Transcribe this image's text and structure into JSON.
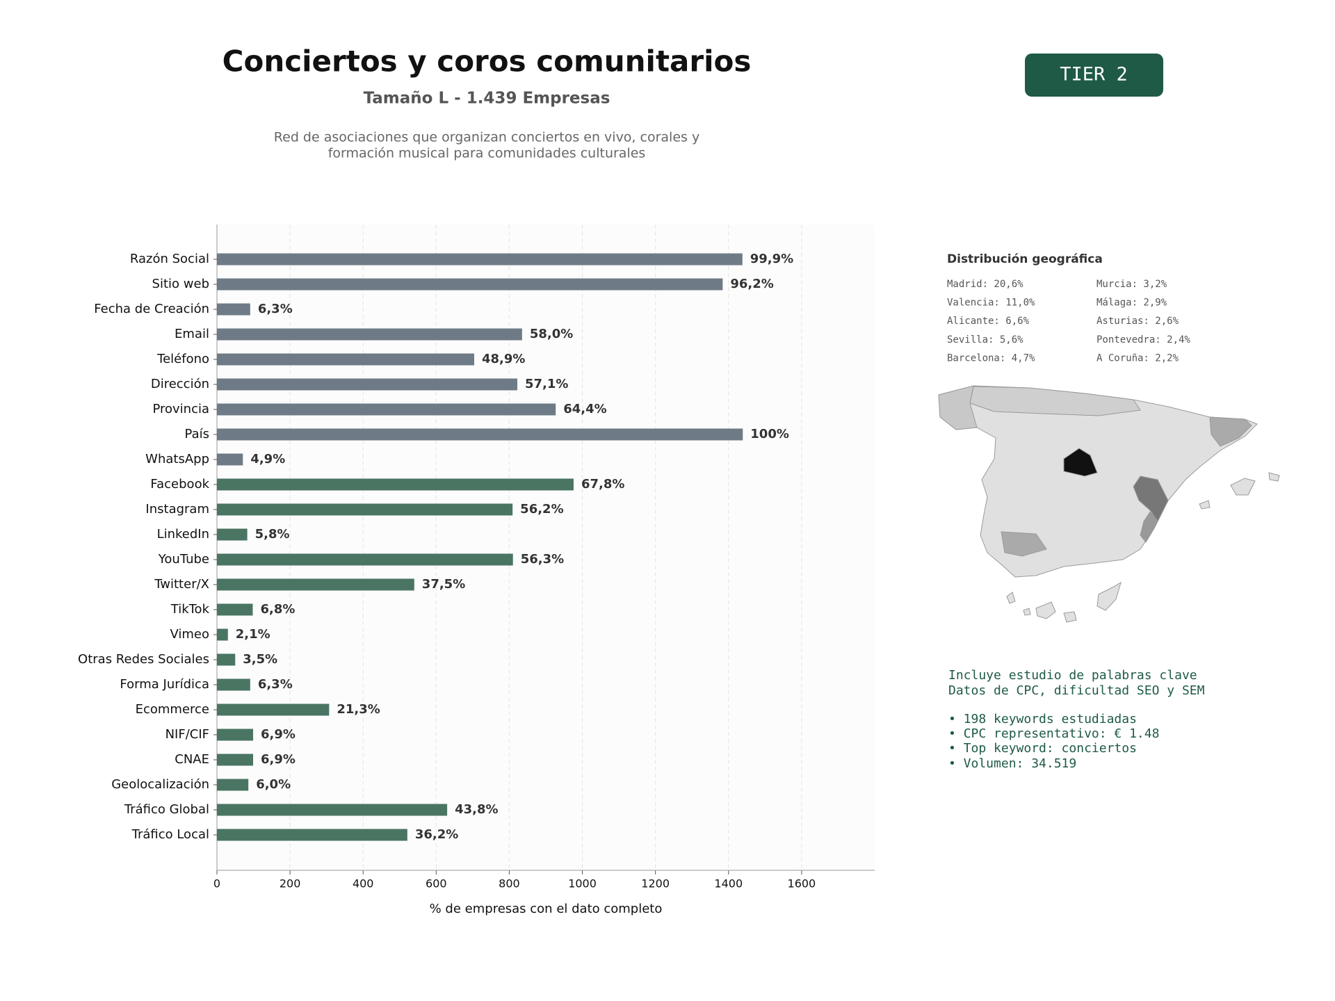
{
  "chart_data": {
    "type": "bar",
    "orientation": "horizontal",
    "title": "Conciertos y coros comunitarios",
    "subtitle": "Tamaño L - 1.439 Empresas",
    "description": [
      "Red de asociaciones que organizan conciertos en vivo, corales y",
      "formación musical para comunidades culturales"
    ],
    "xlabel": "% de empresas con el dato completo",
    "categories": [
      "Razón Social",
      "Sitio web",
      "Fecha de Creación",
      "Email",
      "Teléfono",
      "Dirección",
      "Provincia",
      "País",
      "WhatsApp",
      "Facebook",
      "Instagram",
      "LinkedIn",
      "YouTube",
      "Twitter/X",
      "TikTok",
      "Vimeo",
      "Otras Redes Sociales",
      "Forma Jurídica",
      "Ecommerce",
      "NIF/CIF",
      "CNAE",
      "Geolocalización",
      "Tráfico Global",
      "Tráfico Local"
    ],
    "values": [
      1438,
      1384,
      91,
      835,
      704,
      822,
      927,
      1439,
      71,
      976,
      809,
      83,
      810,
      540,
      98,
      30,
      50,
      91,
      307,
      99,
      99,
      86,
      630,
      521
    ],
    "value_labels": [
      "99,9%",
      "96,2%",
      "6,3%",
      "58,0%",
      "48,9%",
      "57,1%",
      "64,4%",
      "100%",
      "4,9%",
      "67,8%",
      "56,2%",
      "5,8%",
      "56,3%",
      "37,5%",
      "6,8%",
      "2,1%",
      "3,5%",
      "6,3%",
      "21,3%",
      "6,9%",
      "6,9%",
      "6,0%",
      "43,8%",
      "36,2%"
    ],
    "colors": [
      "#6e7b87",
      "#6e7b87",
      "#6e7b87",
      "#6e7b87",
      "#6e7b87",
      "#6e7b87",
      "#6e7b87",
      "#6e7b87",
      "#6e7b87",
      "#4a7563",
      "#4a7563",
      "#4a7563",
      "#4a7563",
      "#4a7563",
      "#4a7563",
      "#4a7563",
      "#4a7563",
      "#4a7563",
      "#4a7563",
      "#4a7563",
      "#4a7563",
      "#4a7563",
      "#4a7563",
      "#4a7563"
    ],
    "xlim": [
      0,
      1800
    ],
    "xticks": [
      0,
      200,
      400,
      600,
      800,
      1000,
      1200,
      1400,
      1600
    ],
    "grid": true
  },
  "badge": "TIER 2",
  "geo": {
    "title": "Distribución geográfica",
    "items": [
      "Madrid: 20,6%",
      "Valencia: 11,0%",
      "Alicante: 6,6%",
      "Sevilla: 5,6%",
      "Barcelona: 4,7%",
      "Murcia: 3,2%",
      "Málaga: 2,9%",
      "Asturias: 2,6%",
      "Pontevedra: 2,4%",
      "A Coruña: 2,2%"
    ]
  },
  "keywords": {
    "lines": [
      "Incluye estudio de palabras clave",
      "Datos de CPC, dificultad SEO y SEM",
      "• 198 keywords estudiadas",
      "• CPC representativo: € 1.48",
      "• Top keyword: conciertos",
      "• Volumen: 34.519"
    ]
  }
}
